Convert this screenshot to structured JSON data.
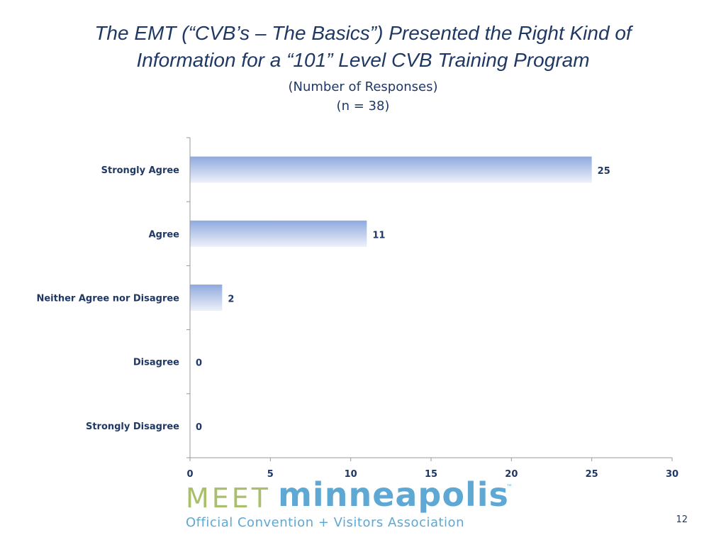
{
  "slide": {
    "title_line1": "The  EMT (“CVB’s – The Basics”) Presented the Right Kind of",
    "title_line2": "Information for a “101” Level CVB Training Program",
    "subtitle1": "(Number of Responses)",
    "subtitle2": "(n = 38)",
    "page_number": "12"
  },
  "logo": {
    "word1": "MEET",
    "word2": "minneapolis",
    "trademark": "™",
    "tagline": "Official Convention + Visitors Association",
    "colors": {
      "meet": "#a9bf6c",
      "city": "#5fa8d3"
    }
  },
  "chart_data": {
    "type": "bar",
    "orientation": "horizontal",
    "categories": [
      "Strongly Agree",
      "Agree",
      "Neither Agree nor Disagree",
      "Disagree",
      "Strongly Disagree"
    ],
    "values": [
      25,
      11,
      2,
      0,
      0
    ],
    "xlim": [
      0,
      30
    ],
    "xticks": [
      0,
      5,
      10,
      15,
      20,
      25,
      30
    ],
    "grid": false,
    "legend": "none",
    "colors": {
      "bar_top": "#8fa9de",
      "bar_bottom": "#eef1fa",
      "text": "#1f3864",
      "axis": "#999999"
    }
  }
}
